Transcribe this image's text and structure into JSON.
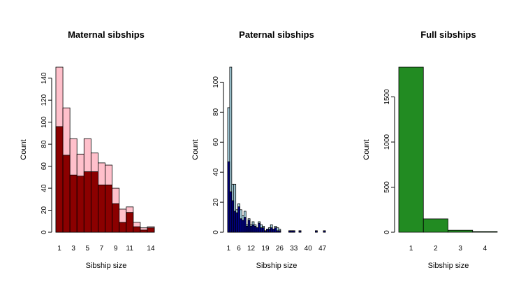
{
  "chart_data": [
    {
      "type": "bar",
      "subtype": "histogram-overlay",
      "title": "Maternal sibships",
      "xlabel": "Sibship size",
      "ylabel": "Count",
      "x_ticks": [
        "1",
        "3",
        "5",
        "7",
        "9",
        "11",
        "14"
      ],
      "x_tick_positions": [
        1,
        3,
        5,
        7,
        9,
        11,
        14
      ],
      "y_ticks": [
        0,
        20,
        40,
        60,
        80,
        100,
        120,
        140
      ],
      "xlim": [
        0.5,
        14.5
      ],
      "ylim": [
        0,
        150
      ],
      "categories": [
        1,
        2,
        3,
        4,
        5,
        6,
        7,
        8,
        9,
        10,
        11,
        12,
        13,
        14
      ],
      "series": [
        {
          "values": [
            150,
            113,
            85,
            71,
            85,
            72,
            63,
            61,
            40,
            21,
            23,
            9,
            4,
            5
          ],
          "color": "#ffc0cb"
        },
        {
          "values": [
            96,
            70,
            52,
            51,
            55,
            55,
            43,
            43,
            26,
            9,
            18,
            5,
            2,
            4
          ],
          "color": "#8b0000"
        }
      ]
    },
    {
      "type": "bar",
      "subtype": "histogram-overlay",
      "title": "Paternal sibships",
      "xlabel": "Sibship size",
      "ylabel": "Count",
      "x_ticks": [
        "1",
        "6",
        "12",
        "19",
        "26",
        "33",
        "40",
        "47"
      ],
      "x_tick_positions": [
        1,
        6,
        12,
        19,
        26,
        33,
        40,
        47
      ],
      "y_ticks": [
        0,
        20,
        40,
        60,
        80,
        100
      ],
      "xlim": [
        0.5,
        48.5
      ],
      "ylim": [
        0,
        110
      ],
      "categories": [
        1,
        2,
        3,
        4,
        5,
        6,
        7,
        8,
        9,
        10,
        11,
        12,
        13,
        14,
        15,
        16,
        17,
        18,
        19,
        20,
        21,
        22,
        23,
        24,
        25,
        26,
        27,
        28,
        29,
        30,
        31,
        32,
        33,
        34,
        35,
        36,
        37,
        38,
        39,
        40,
        41,
        42,
        43,
        44,
        45,
        46,
        47,
        48
      ],
      "series": [
        {
          "values": [
            83,
            110,
            32,
            32,
            15,
            19,
            15,
            11,
            14,
            5,
            9,
            5,
            7,
            5,
            3,
            7,
            5,
            4,
            1,
            2,
            3,
            5,
            2,
            4,
            3,
            2,
            0,
            0,
            0,
            0,
            1,
            1,
            1,
            0,
            0,
            1,
            0,
            0,
            0,
            0,
            0,
            0,
            0,
            1,
            0,
            0,
            0,
            1
          ],
          "color": "#add8e6"
        },
        {
          "values": [
            47,
            27,
            21,
            14,
            13,
            17,
            9,
            8,
            10,
            4,
            8,
            4,
            5,
            4,
            3,
            6,
            3,
            3,
            1,
            2,
            2,
            3,
            2,
            3,
            1,
            1,
            0,
            0,
            0,
            0,
            1,
            1,
            1,
            0,
            0,
            1,
            0,
            0,
            0,
            0,
            0,
            0,
            0,
            1,
            0,
            0,
            0,
            1
          ],
          "color": "#000080"
        }
      ]
    },
    {
      "type": "bar",
      "subtype": "histogram",
      "title": "Full sibships",
      "xlabel": "Sibship size",
      "ylabel": "Count",
      "x_ticks": [
        "1",
        "2",
        "3",
        "4"
      ],
      "x_tick_positions": [
        1,
        2,
        3,
        4
      ],
      "y_ticks": [
        0,
        500,
        1000,
        1500
      ],
      "xlim": [
        0.5,
        4.5
      ],
      "ylim": [
        0,
        1830
      ],
      "categories": [
        1,
        2,
        3,
        4
      ],
      "series": [
        {
          "values": [
            1830,
            148,
            22,
            8
          ],
          "color": "#228b22"
        }
      ]
    }
  ]
}
